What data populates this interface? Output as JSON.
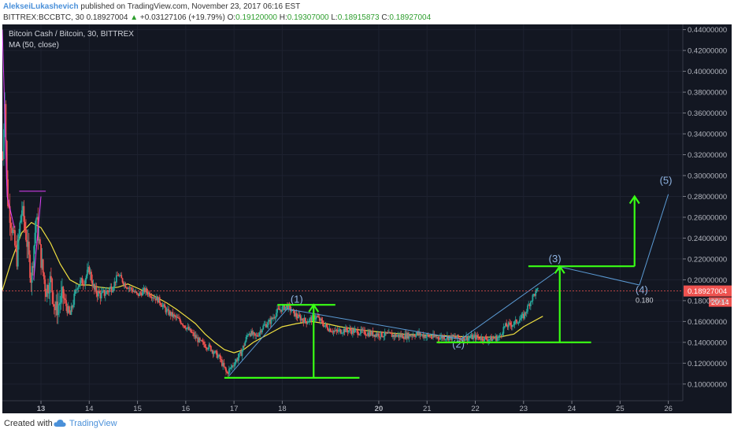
{
  "header": {
    "author": "AlekseiLukashevich",
    "published_text": "published on TradingView.com, November 23, 2017 06:16 EST",
    "symbol": "BITTREX:BCCBTC, 30",
    "price": "0.18927004",
    "change_arrow": "▲",
    "change": "+0.03127106 (+19.79%)",
    "open_label": "O:",
    "open": "0.19120000",
    "high_label": "H:",
    "high": "0.19307000",
    "low_label": "L:",
    "low": "0.18915873",
    "close_label": "C:",
    "close": "0.18927004"
  },
  "chart": {
    "title": "Bitcoin Cash / Bitcoin, 30, BITTREX",
    "indicator": "MA (50, close)",
    "last_price_label": "0.18927004",
    "countdown": "20:14"
  },
  "chart_data": {
    "type": "candlestick",
    "title": "Bitcoin Cash / Bitcoin, 30, BITTREX",
    "x_ticks": [
      "13",
      "14",
      "15",
      "16",
      "17",
      "18",
      "20",
      "21",
      "22",
      "23",
      "24",
      "25",
      "26"
    ],
    "x_tick_days": [
      13,
      14,
      15,
      16,
      17,
      18,
      20,
      21,
      22,
      23,
      24,
      25,
      26
    ],
    "y_ticks": [
      "0.10000000",
      "0.12000000",
      "0.14000000",
      "0.16000000",
      "0.18000000",
      "0.20000000",
      "0.22000000",
      "0.24000000",
      "0.26000000",
      "0.28000000",
      "0.30000000",
      "0.32000000",
      "0.34000000",
      "0.36000000",
      "0.38000000",
      "0.40000000",
      "0.42000000",
      "0.44000000"
    ],
    "y_tick_values": [
      0.1,
      0.12,
      0.14,
      0.16,
      0.18,
      0.2,
      0.22,
      0.24,
      0.26,
      0.28,
      0.3,
      0.32,
      0.34,
      0.36,
      0.38,
      0.4,
      0.42,
      0.44
    ],
    "ylim": [
      0.084,
      0.445
    ],
    "xlim": [
      12.2,
      26.3
    ],
    "price_path": [
      [
        12.2,
        0.3
      ],
      [
        12.25,
        0.38
      ],
      [
        12.3,
        0.28
      ],
      [
        12.4,
        0.25
      ],
      [
        12.5,
        0.22
      ],
      [
        12.6,
        0.27
      ],
      [
        12.7,
        0.24
      ],
      [
        12.8,
        0.2
      ],
      [
        12.9,
        0.26
      ],
      [
        13.0,
        0.22
      ],
      [
        13.1,
        0.19
      ],
      [
        13.2,
        0.2
      ],
      [
        13.3,
        0.17
      ],
      [
        13.45,
        0.185
      ],
      [
        13.6,
        0.165
      ],
      [
        13.75,
        0.195
      ],
      [
        13.9,
        0.2
      ],
      [
        14.0,
        0.21
      ],
      [
        14.1,
        0.19
      ],
      [
        14.25,
        0.185
      ],
      [
        14.4,
        0.19
      ],
      [
        14.5,
        0.195
      ],
      [
        14.6,
        0.205
      ],
      [
        14.75,
        0.195
      ],
      [
        14.9,
        0.19
      ],
      [
        15.0,
        0.185
      ],
      [
        15.15,
        0.19
      ],
      [
        15.3,
        0.185
      ],
      [
        15.45,
        0.18
      ],
      [
        15.6,
        0.17
      ],
      [
        15.75,
        0.165
      ],
      [
        15.9,
        0.16
      ],
      [
        16.1,
        0.15
      ],
      [
        16.3,
        0.14
      ],
      [
        16.5,
        0.135
      ],
      [
        16.7,
        0.125
      ],
      [
        16.85,
        0.11
      ],
      [
        17.0,
        0.12
      ],
      [
        17.15,
        0.13
      ],
      [
        17.3,
        0.15
      ],
      [
        17.45,
        0.145
      ],
      [
        17.6,
        0.155
      ],
      [
        17.75,
        0.16
      ],
      [
        17.9,
        0.17
      ],
      [
        18.1,
        0.175
      ],
      [
        18.3,
        0.165
      ],
      [
        18.5,
        0.16
      ],
      [
        18.7,
        0.165
      ],
      [
        18.9,
        0.155
      ],
      [
        19.1,
        0.15
      ],
      [
        19.3,
        0.152
      ],
      [
        19.6,
        0.15
      ],
      [
        19.9,
        0.148
      ],
      [
        20.2,
        0.147
      ],
      [
        20.5,
        0.146
      ],
      [
        20.8,
        0.148
      ],
      [
        21.1,
        0.145
      ],
      [
        21.4,
        0.145
      ],
      [
        21.7,
        0.144
      ],
      [
        22.0,
        0.145
      ],
      [
        22.3,
        0.143
      ],
      [
        22.5,
        0.145
      ],
      [
        22.6,
        0.155
      ],
      [
        22.8,
        0.158
      ],
      [
        23.0,
        0.165
      ],
      [
        23.1,
        0.175
      ],
      [
        23.2,
        0.185
      ],
      [
        23.3,
        0.19
      ]
    ],
    "ma_path": [
      [
        12.2,
        0.19
      ],
      [
        12.4,
        0.22
      ],
      [
        12.6,
        0.245
      ],
      [
        12.8,
        0.255
      ],
      [
        13.0,
        0.25
      ],
      [
        13.2,
        0.235
      ],
      [
        13.4,
        0.215
      ],
      [
        13.6,
        0.2
      ],
      [
        13.8,
        0.195
      ],
      [
        14.0,
        0.195
      ],
      [
        14.2,
        0.193
      ],
      [
        14.4,
        0.192
      ],
      [
        14.6,
        0.193
      ],
      [
        14.8,
        0.196
      ],
      [
        15.0,
        0.192
      ],
      [
        15.2,
        0.188
      ],
      [
        15.4,
        0.183
      ],
      [
        15.6,
        0.178
      ],
      [
        15.8,
        0.172
      ],
      [
        16.0,
        0.165
      ],
      [
        16.2,
        0.158
      ],
      [
        16.4,
        0.148
      ],
      [
        16.6,
        0.14
      ],
      [
        16.8,
        0.133
      ],
      [
        17.0,
        0.13
      ],
      [
        17.2,
        0.133
      ],
      [
        17.4,
        0.14
      ],
      [
        17.6,
        0.145
      ],
      [
        17.8,
        0.15
      ],
      [
        18.0,
        0.155
      ],
      [
        18.3,
        0.158
      ],
      [
        18.6,
        0.16
      ],
      [
        18.9,
        0.158
      ],
      [
        19.2,
        0.155
      ],
      [
        19.6,
        0.152
      ],
      [
        20.0,
        0.15
      ],
      [
        20.5,
        0.148
      ],
      [
        21.0,
        0.147
      ],
      [
        21.5,
        0.146
      ],
      [
        22.0,
        0.145
      ],
      [
        22.5,
        0.145
      ],
      [
        22.8,
        0.148
      ],
      [
        23.0,
        0.155
      ],
      [
        23.2,
        0.16
      ],
      [
        23.4,
        0.165
      ]
    ],
    "wave_path": [
      [
        16.9,
        0.108
      ],
      [
        18.1,
        0.172
      ],
      [
        21.7,
        0.143
      ],
      [
        23.8,
        0.212
      ],
      [
        25.4,
        0.195
      ],
      [
        26.0,
        0.282
      ]
    ],
    "wave_labels": [
      {
        "text": "(1)",
        "x": 18.3,
        "y": 0.178
      },
      {
        "text": "(2)",
        "x": 21.65,
        "y": 0.135
      },
      {
        "text": "(3)",
        "x": 23.65,
        "y": 0.217
      },
      {
        "text": "(4)",
        "x": 25.45,
        "y": 0.187
      },
      {
        "text": "(5)",
        "x": 25.95,
        "y": 0.292
      }
    ],
    "levels": [
      {
        "x1": 16.8,
        "x2": 19.6,
        "y": 0.106
      },
      {
        "x1": 17.9,
        "x2": 19.1,
        "y": 0.176
      },
      {
        "x1": 21.2,
        "x2": 24.4,
        "y": 0.14
      },
      {
        "x1": 23.1,
        "x2": 25.3,
        "y": 0.213
      }
    ],
    "arrows": [
      {
        "x": 18.65,
        "y1": 0.106,
        "y2": 0.176
      },
      {
        "x": 23.75,
        "y1": 0.14,
        "y2": 0.213
      },
      {
        "x": 25.3,
        "y1": 0.213,
        "y2": 0.28
      }
    ],
    "ticker_lines": [
      [
        [
          12.2,
          0.44
        ],
        [
          12.3,
          0.28
        ],
        [
          12.45,
          0.25
        ]
      ],
      [
        [
          12.55,
          0.285
        ],
        [
          13.1,
          0.285
        ]
      ],
      [
        [
          13.0,
          0.28
        ],
        [
          12.85,
          0.2
        ]
      ]
    ],
    "last_price": 0.18927004,
    "colors": {
      "background": "#131722",
      "up": "#26a69a",
      "down": "#ef5350",
      "ma": "#f0e040",
      "annotation": "#39ff14",
      "wave": "#5b9bd5",
      "ticker": "#e040fb"
    }
  },
  "footer": {
    "created_with": "Created with",
    "brand": "TradingView"
  }
}
